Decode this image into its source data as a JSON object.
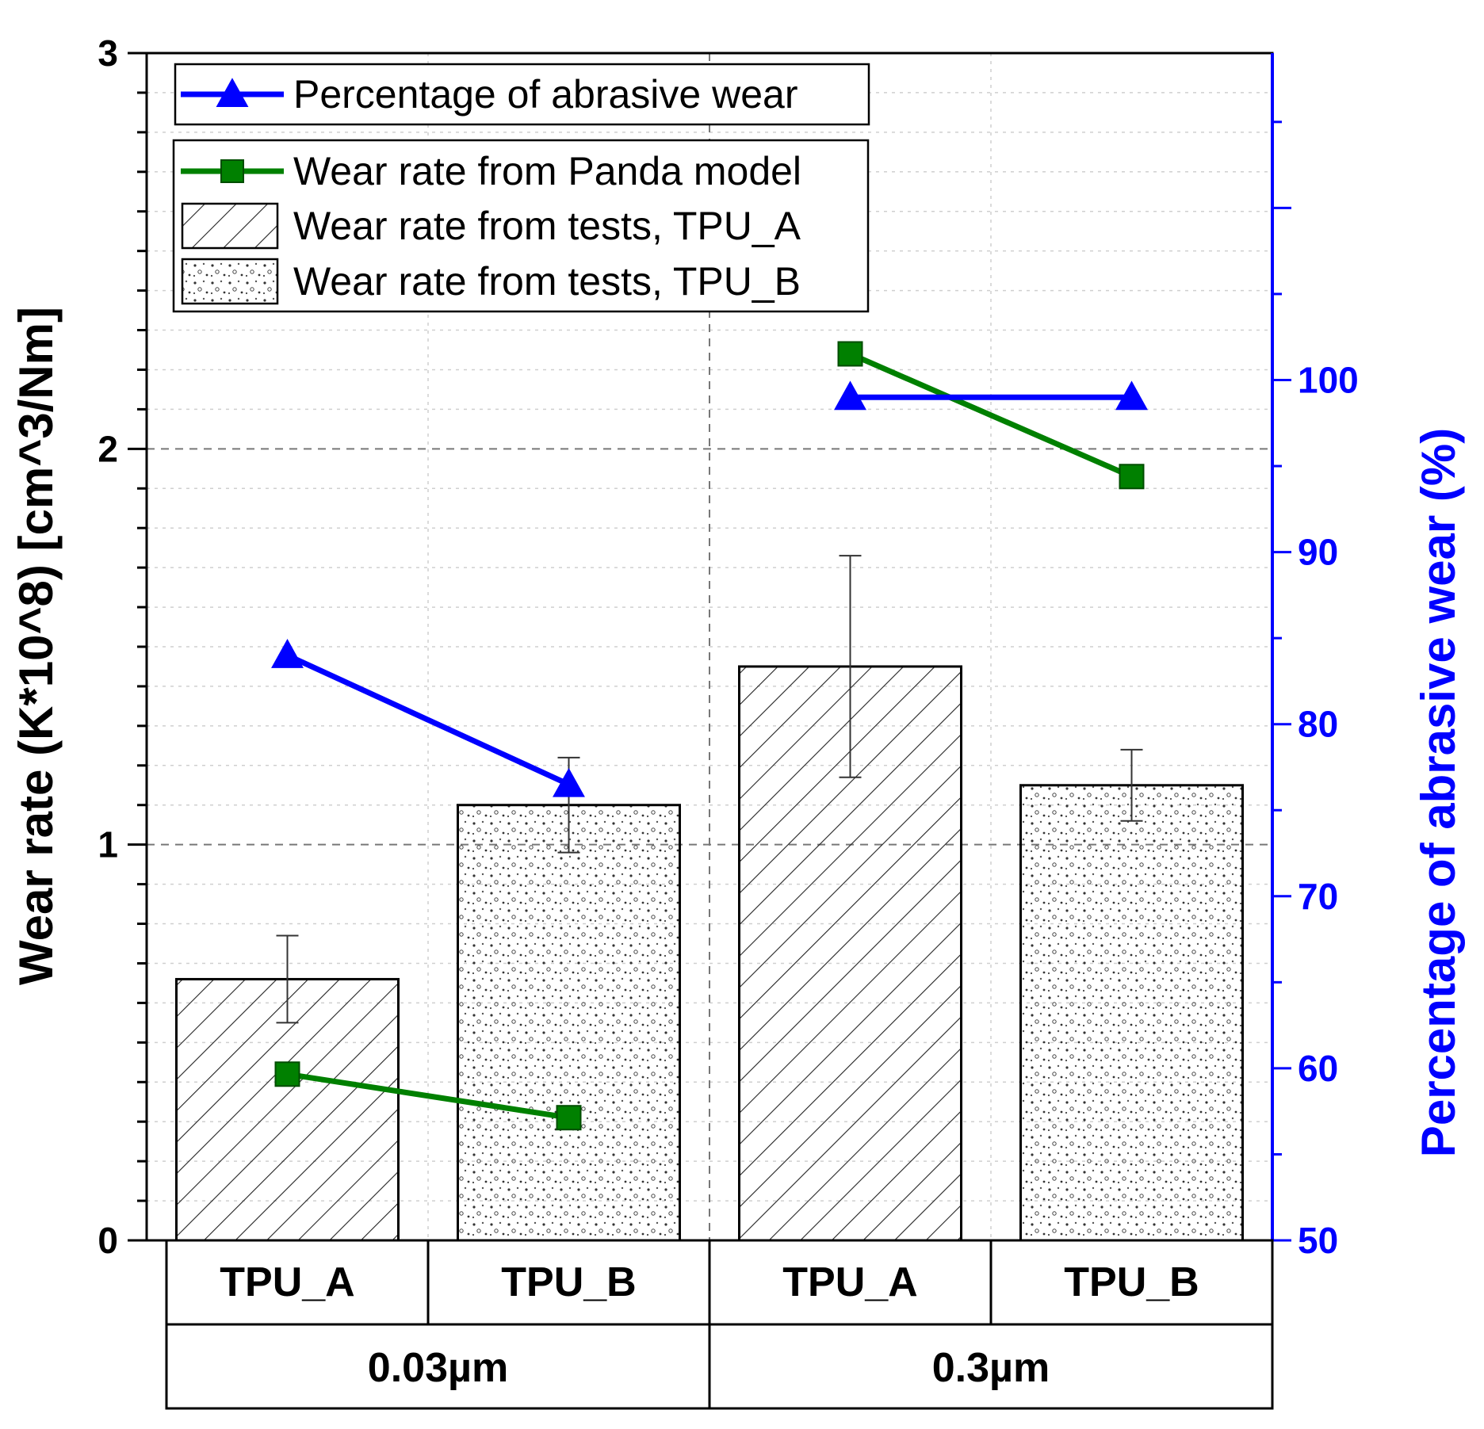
{
  "chart_data": {
    "type": "bar",
    "y_axis": {
      "label": "Wear rate (K*10^8) [cm^3/Nm]",
      "range": [
        0,
        3
      ],
      "ticks": [
        "0",
        "1",
        "2",
        "3"
      ]
    },
    "y2_axis": {
      "label": "Percentage of abrasive wear (%)",
      "range": [
        50,
        119
      ],
      "ticks": [
        "50",
        "60",
        "70",
        "80",
        "90",
        "100"
      ],
      "color": "#0000ff"
    },
    "groups": [
      {
        "label": "0.03µm",
        "categories": [
          "TPU_A",
          "TPU_B"
        ]
      },
      {
        "label": "0.3µm",
        "categories": [
          "TPU_A",
          "TPU_B"
        ]
      }
    ],
    "series": [
      {
        "name": "Wear rate from tests, TPU_A",
        "kind": "bar",
        "pattern": "hatch",
        "points": [
          {
            "group": 0,
            "category": 0,
            "value": 0.66,
            "error": 0.11
          },
          {
            "group": 1,
            "category": 0,
            "value": 1.45,
            "error": 0.28
          }
        ]
      },
      {
        "name": "Wear rate from tests, TPU_B",
        "kind": "bar",
        "pattern": "dots",
        "points": [
          {
            "group": 0,
            "category": 1,
            "value": 1.1,
            "error": 0.12
          },
          {
            "group": 1,
            "category": 1,
            "value": 1.15,
            "error": 0.09
          }
        ]
      },
      {
        "name": "Wear rate from Panda model",
        "kind": "line",
        "axis": "left",
        "color": "#008000",
        "marker": "square",
        "segments": [
          {
            "group": 0,
            "values": [
              0.42,
              0.31
            ]
          },
          {
            "group": 1,
            "values": [
              2.24,
              1.93
            ]
          }
        ]
      },
      {
        "name": "Percentage of abrasive wear",
        "kind": "line",
        "axis": "right",
        "color": "#0000ff",
        "marker": "triangle",
        "segments": [
          {
            "group": 0,
            "values": [
              84,
              76.5
            ]
          },
          {
            "group": 1,
            "values": [
              99,
              99
            ]
          }
        ]
      }
    ],
    "grid": true,
    "legend_position": "top-left"
  }
}
